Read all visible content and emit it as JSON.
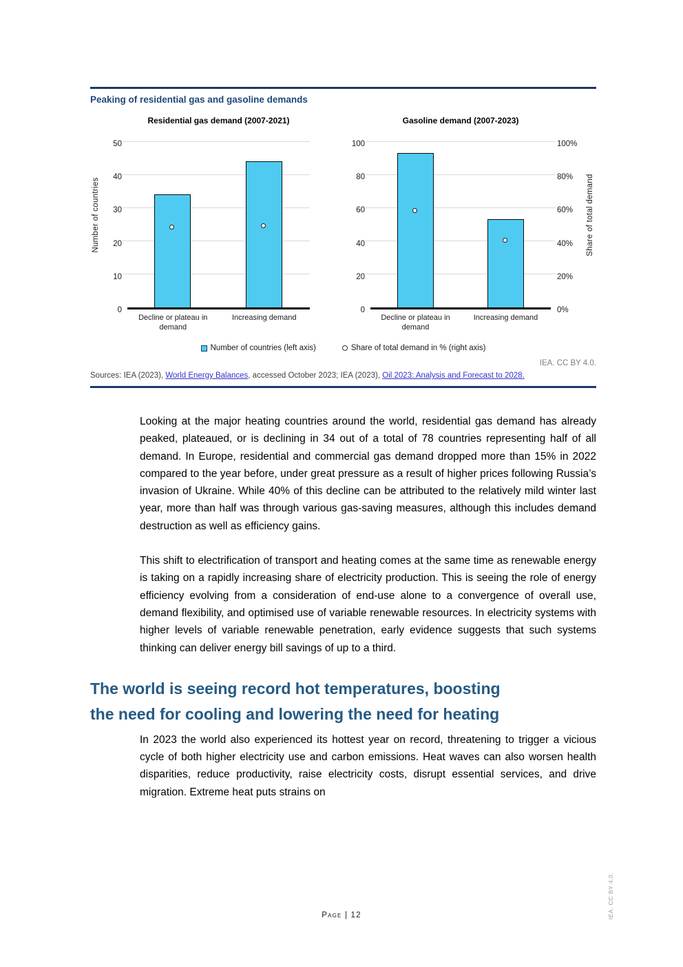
{
  "colors": {
    "bar": "#4FCBF2",
    "navy": "#1F3864",
    "figtitle": "#1F4879",
    "heading": "#255A84",
    "link": "#3333CC",
    "grid": "#D9D9D9",
    "gray": "#7F7F7F",
    "sources": "#404040",
    "axis": "#1A1A1A"
  },
  "figure": {
    "title": "Peaking of residential gas and gasoline demands",
    "attribution": "IEA. CC BY 4.0.",
    "legend": {
      "countries": "Number of countries (left axis)",
      "share": "Share of total demand in % (right axis)"
    },
    "sources": {
      "prefix": "Sources: IEA (2023), ",
      "link1": "World Energy Balances",
      "middle": ", accessed October 2023; IEA (2023), ",
      "link2": "Oil 2023: Analysis and Forecast to 2028."
    }
  },
  "chart_data": [
    {
      "type": "bar",
      "title": "Residential gas demand (2007-2021)",
      "categories": [
        "Decline or plateau in demand",
        "Increasing demand"
      ],
      "series": [
        {
          "name": "Number of countries (left axis)",
          "axis": "left",
          "values": [
            34,
            44
          ]
        },
        {
          "name": "Share of total demand in % (right axis)",
          "axis": "right",
          "values": [
            49,
            50
          ]
        }
      ],
      "ylabel_left": "Number of countries",
      "ylim_left": [
        0,
        50
      ],
      "yticks_left": [
        0,
        10,
        20,
        30,
        40,
        50
      ],
      "ylim_right": [
        0,
        100
      ],
      "grid": true,
      "legend_position": "bottom"
    },
    {
      "type": "bar",
      "title": "Gasoline demand (2007-2023)",
      "categories": [
        "Decline or plateau in demand",
        "Increasing demand"
      ],
      "series": [
        {
          "name": "Number of countries (left axis)",
          "axis": "left",
          "values": [
            93,
            53
          ]
        },
        {
          "name": "Share of total demand in % (right axis)",
          "axis": "right",
          "values": [
            59,
            41
          ]
        }
      ],
      "ylabel_right": "Share of total demand",
      "ylim_left": [
        0,
        100
      ],
      "yticks_left": [
        0,
        20,
        40,
        60,
        80,
        100
      ],
      "ylim_right": [
        0,
        100
      ],
      "yticks_right": [
        "0%",
        "20%",
        "40%",
        "60%",
        "80%",
        "100%"
      ],
      "grid": true,
      "legend_position": "bottom"
    }
  ],
  "body": {
    "para1": "Looking at the major heating countries around the world, residential gas demand has already peaked, plateaued, or is declining in 34 out of a total of 78 countries representing half of all demand. In Europe, residential and commercial gas demand dropped more than 15% in 2022 compared to the year before, under great pressure as a result of higher prices following Russia’s invasion of Ukraine. While 40% of this decline can be attributed to the relatively mild winter last year, more than half was through various gas-saving measures, although this includes demand destruction as well as efficiency gains.",
    "para2": "This shift to electrification of transport and heating comes at the same time as renewable energy is taking on a rapidly increasing share of electricity production. This is seeing the role of energy efficiency evolving from a consideration of end-use alone to a convergence of overall use, demand flexibility, and optimised use of variable renewable resources. In electricity systems with higher levels of variable renewable penetration, early evidence suggests that such systems thinking can deliver energy bill savings of up to a third.",
    "heading_line1": "The world is seeing record hot temperatures, boosting",
    "heading_line2": "the need for cooling and lowering the need for heating",
    "para3": "In 2023 the world also experienced its hottest year on record, threatening to trigger a vicious cycle of both higher electricity use and carbon emissions. Heat waves can also worsen health disparities, reduce productivity, raise electricity costs, disrupt essential services, and drive migration. Extreme heat puts strains on"
  },
  "footer": {
    "page_label": "Page | 12",
    "side_attribution": "IEA. CC BY 4.0."
  }
}
